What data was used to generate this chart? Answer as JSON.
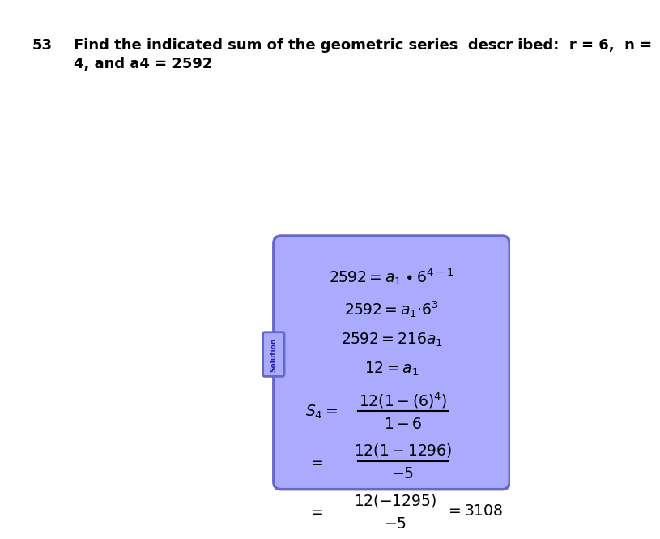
{
  "bg_color": "#ffffff",
  "box_bg": "#aaaaff",
  "box_edge": "#6666cc",
  "tab_text_color": "#2222aa",
  "title_number": "53",
  "title_text": "Find the indicated sum of the geometric series  descr ibed:  r = 6,  n =",
  "title_text2": "4, and a4 = 2592",
  "solution_tab_text": "Solution",
  "font_size_title": 13,
  "font_size_body": 13
}
